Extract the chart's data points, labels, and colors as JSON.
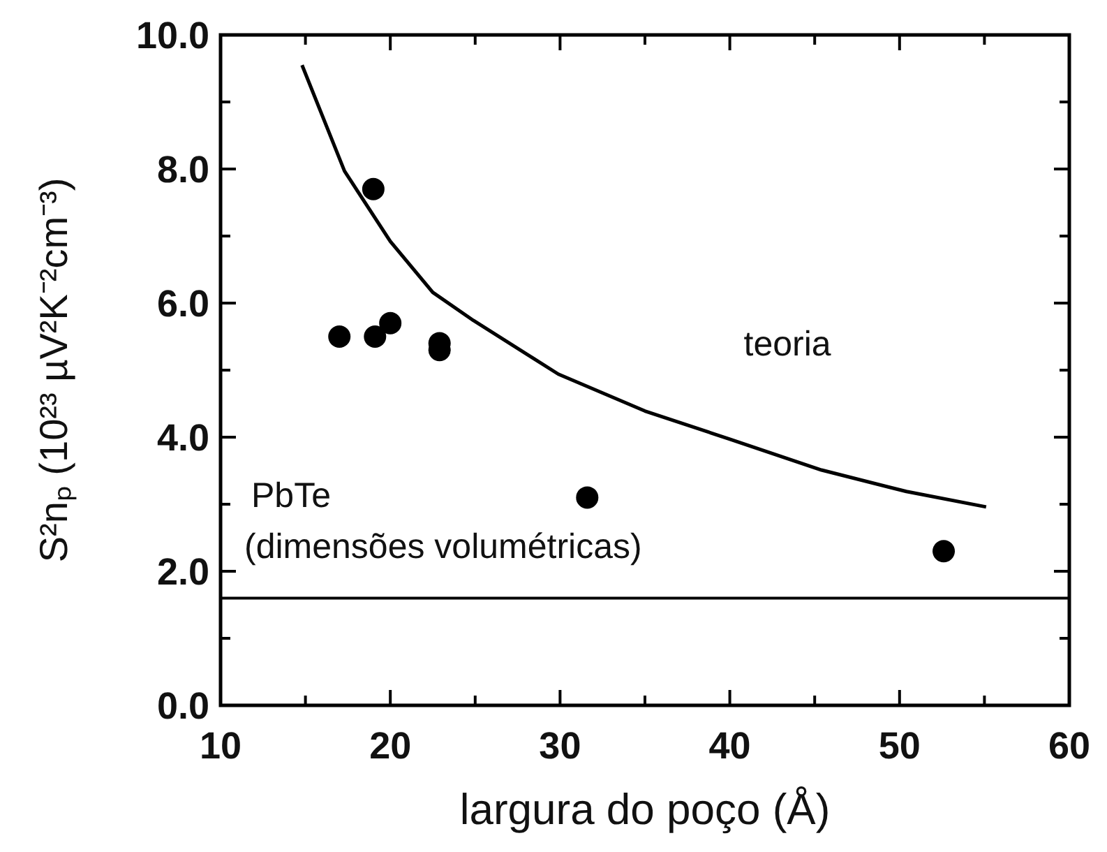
{
  "chart_data": {
    "type": "scatter",
    "xlabel": "largura do poço (Å)",
    "ylabel": "S²nₚ (10²³ µV²K⁻²cm⁻³)",
    "xlim": [
      10,
      60
    ],
    "ylim": [
      0,
      10
    ],
    "xticks": [
      10,
      {
        "value": 15,
        "label": null
      },
      20,
      {
        "value": 25,
        "label": null
      },
      30,
      {
        "value": 35,
        "label": null
      },
      40,
      {
        "value": 45,
        "label": null
      },
      50,
      {
        "value": 55,
        "label": null
      },
      60
    ],
    "yticks": [
      {
        "value": 0,
        "label": "0.0"
      },
      {
        "value": 1,
        "label": null
      },
      {
        "value": 2,
        "label": "2.0"
      },
      {
        "value": 3,
        "label": null
      },
      {
        "value": 4,
        "label": "4.0"
      },
      {
        "value": 5,
        "label": null
      },
      {
        "value": 6,
        "label": "6.0"
      },
      {
        "value": 7,
        "label": null
      },
      {
        "value": 8,
        "label": "8.0"
      },
      {
        "value": 9,
        "label": null
      },
      {
        "value": 10,
        "label": "10.0"
      }
    ],
    "marker": "circle",
    "grid": false,
    "series": [
      {
        "color": "#000000",
        "x": [
          17.0,
          19.0,
          19.1,
          20.0,
          22.9,
          22.9,
          31.6,
          52.6
        ],
        "values": [
          5.5,
          7.7,
          5.5,
          5.7,
          5.4,
          5.3,
          3.1,
          2.3
        ]
      },
      {
        "type": "line",
        "name": "teoria",
        "color": "#000000",
        "marker": "none",
        "x": [
          14.8,
          17.3,
          20.0,
          22.5,
          24.9,
          29.9,
          35.0,
          40.0,
          45.4,
          50.4,
          55.1
        ],
        "values": [
          9.55,
          7.97,
          6.92,
          6.16,
          5.74,
          4.94,
          4.39,
          3.97,
          3.51,
          3.19,
          2.96
        ]
      }
    ],
    "ref_lines": [
      {
        "axis": "y",
        "value": 1.6,
        "label": "PbTe (dimensões volumétricas)",
        "color": "#000000"
      }
    ]
  }
}
